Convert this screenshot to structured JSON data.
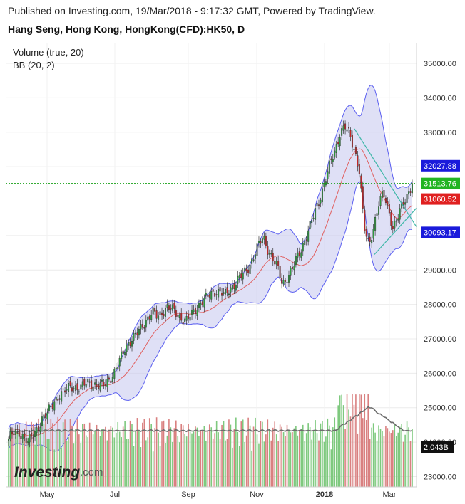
{
  "header": {
    "published": "Published on Investing.com, 19/Mar/2018 - 9:17:32 GMT, Powered by TradingView.",
    "symbol": "Hang Seng, Hong Kong, HongKong(CFD):HK50, D"
  },
  "indicators": [
    "Volume (true, 20)",
    "BB (20, 2)"
  ],
  "logo": {
    "main": "Investing",
    "suffix": ".com"
  },
  "colors": {
    "up": "#26a69a",
    "down": "#ef5350",
    "candle_up": "#2e9e3e",
    "candle_down": "#c62828",
    "vol_up": "#7ec97e",
    "vol_down": "#d98080",
    "bb_band": "#5b5ff0",
    "bb_fill": "#c5c7ef",
    "bb_mid": "#e06060",
    "trend": "#3fb7a8",
    "vol_ma": "#6d6d6d",
    "price_line": "#1aa11a"
  },
  "chart_data": {
    "type": "candlestick",
    "x_labels": [
      "May",
      "Jul",
      "Sep",
      "Nov",
      "2018",
      "Mar"
    ],
    "ylim": [
      22700,
      35600
    ],
    "y_ticks": [
      "35000.00",
      "34000.00",
      "33000.00",
      "32000.00",
      "31000.00",
      "30000.00",
      "29000.00",
      "28000.00",
      "27000.00",
      "26000.00",
      "25000.00",
      "24000.00",
      "23000.00"
    ],
    "price_badges": [
      {
        "label": "32027.88",
        "value": 32027.88,
        "color": "#1a1adb"
      },
      {
        "label": "31513.76",
        "value": 31513.76,
        "color": "#22b422"
      },
      {
        "label": "31060.52",
        "value": 31060.52,
        "color": "#e02020"
      },
      {
        "label": "30093.17",
        "value": 30093.17,
        "color": "#1a1adb"
      }
    ],
    "volume_badge": {
      "label": "2.043B",
      "color": "#111111"
    },
    "close_series": [
      24100,
      24250,
      24300,
      24200,
      24000,
      24150,
      24400,
      24700,
      24800,
      25050,
      25300,
      25400,
      25500,
      25650,
      25600,
      25550,
      25700,
      25750,
      25650,
      25600,
      25700,
      25850,
      26000,
      26300,
      26700,
      26900,
      27000,
      27200,
      27450,
      27600,
      27750,
      27650,
      27800,
      27900,
      27850,
      27750,
      27600,
      27500,
      27700,
      27900,
      28050,
      28150,
      28300,
      28400,
      28350,
      28250,
      28450,
      28600,
      28750,
      28900,
      29100,
      29400,
      29700,
      29950,
      29600,
      29300,
      29050,
      28600,
      28800,
      29000,
      29350,
      29650,
      30000,
      30350,
      30800,
      31200,
      31650,
      32100,
      32500,
      33000,
      33150,
      32900,
      32500,
      31900,
      30200,
      29700,
      30300,
      30900,
      31200,
      30800,
      30250,
      30500,
      30900,
      31200,
      31513.76
    ]
  }
}
